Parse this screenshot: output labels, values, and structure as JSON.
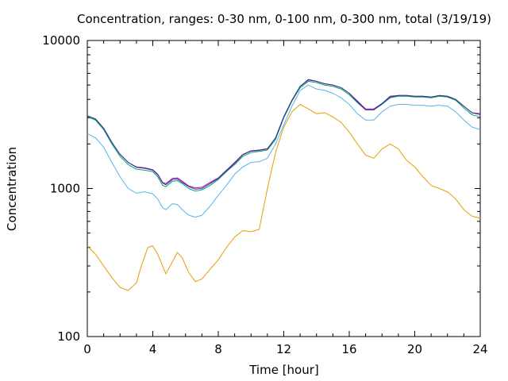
{
  "chart_data": {
    "type": "line",
    "title": "Concentration, ranges: 0-30 nm, 0-100 nm, 0-300 nm, total (3/19/19)",
    "xlabel": "Time [hour]",
    "ylabel": "Concentration",
    "xlim": [
      0,
      24
    ],
    "ylim": [
      100,
      10000
    ],
    "y_scale": "log",
    "x_ticks": [
      0,
      4,
      8,
      12,
      16,
      20,
      24
    ],
    "y_ticks": [
      100,
      1000,
      10000
    ],
    "x_tick_labels": [
      "0",
      "4",
      "8",
      "12",
      "16",
      "20",
      "24"
    ],
    "y_tick_labels": [
      "100",
      "1000",
      "10000"
    ],
    "grid": false,
    "series": [
      {
        "color": "#e69f00",
        "x": [
          0,
          0.5,
          1,
          1.5,
          2,
          2.5,
          3,
          3.3,
          3.7,
          4,
          4.3,
          4.6,
          4.8,
          5.2,
          5.5,
          5.8,
          6.2,
          6.6,
          7,
          7.5,
          8,
          8.5,
          9,
          9.5,
          10,
          10.5,
          11,
          11.5,
          12,
          12.5,
          13,
          13.5,
          14,
          14.5,
          15,
          15.5,
          16,
          16.5,
          17,
          17.5,
          18,
          18.5,
          19,
          19.5,
          20,
          20.5,
          21,
          21.5,
          22,
          22.5,
          23,
          23.5,
          24
        ],
        "y": [
          410,
          360,
          300,
          250,
          215,
          205,
          230,
          300,
          400,
          410,
          360,
          300,
          265,
          320,
          370,
          340,
          270,
          235,
          245,
          285,
          330,
          400,
          470,
          520,
          510,
          530,
          1000,
          1750,
          2600,
          3300,
          3700,
          3450,
          3200,
          3250,
          3050,
          2800,
          2400,
          2000,
          1680,
          1600,
          1850,
          2000,
          1850,
          1550,
          1400,
          1200,
          1050,
          1000,
          950,
          850,
          720,
          650,
          630
        ]
      },
      {
        "color": "#56b4e9",
        "x": [
          0,
          0.5,
          1,
          1.5,
          2,
          2.5,
          3,
          3.5,
          4,
          4.3,
          4.6,
          4.8,
          5.2,
          5.5,
          5.8,
          6.2,
          6.6,
          7,
          7.5,
          8,
          8.5,
          9,
          9.5,
          10,
          10.5,
          11,
          11.5,
          12,
          12.5,
          13,
          13.5,
          14,
          14.5,
          15,
          15.5,
          16,
          16.5,
          17,
          17.5,
          18,
          18.5,
          19,
          19.5,
          20,
          20.5,
          21,
          21.5,
          22,
          22.5,
          23,
          23.5,
          24
        ],
        "y": [
          2350,
          2200,
          1900,
          1500,
          1200,
          1000,
          930,
          950,
          920,
          850,
          740,
          720,
          790,
          780,
          720,
          660,
          640,
          660,
          760,
          900,
          1050,
          1250,
          1400,
          1500,
          1520,
          1600,
          2000,
          2700,
          3600,
          4600,
          5000,
          4700,
          4600,
          4400,
          4100,
          3700,
          3200,
          2900,
          2900,
          3300,
          3600,
          3700,
          3700,
          3650,
          3650,
          3600,
          3650,
          3600,
          3300,
          2900,
          2600,
          2500
        ]
      },
      {
        "color": "#009e73",
        "x": [
          0,
          0.5,
          1,
          1.5,
          2,
          2.5,
          3,
          3.5,
          4,
          4.3,
          4.6,
          4.8,
          5.2,
          5.5,
          5.8,
          6.2,
          6.6,
          7,
          7.5,
          8,
          8.5,
          9,
          9.5,
          10,
          10.5,
          11,
          11.5,
          12,
          12.5,
          13,
          13.5,
          14,
          14.5,
          15,
          15.5,
          16,
          16.5,
          17,
          17.5,
          18,
          18.5,
          19,
          19.5,
          20,
          20.5,
          21,
          21.5,
          22,
          22.5,
          23,
          23.5,
          24
        ],
        "y": [
          3050,
          2900,
          2500,
          2000,
          1650,
          1450,
          1350,
          1330,
          1300,
          1200,
          1050,
          1030,
          1120,
          1130,
          1080,
          1000,
          960,
          980,
          1050,
          1150,
          1300,
          1450,
          1650,
          1750,
          1780,
          1820,
          2150,
          3000,
          3900,
          4800,
          5300,
          5200,
          5000,
          4900,
          4700,
          4300,
          3800,
          3400,
          3400,
          3700,
          4100,
          4200,
          4200,
          4150,
          4150,
          4100,
          4200,
          4150,
          3950,
          3500,
          3150,
          3050
        ]
      },
      {
        "color": "#cc00cc",
        "x": [
          0,
          0.5,
          1,
          1.5,
          2,
          2.5,
          3,
          3.5,
          4,
          4.3,
          4.6,
          4.8,
          5.2,
          5.5,
          5.8,
          6.2,
          6.6,
          7,
          7.5,
          8,
          8.5,
          9,
          9.5,
          10,
          10.5,
          11,
          11.5,
          12,
          12.5,
          13,
          13.5,
          14,
          14.5,
          15,
          15.5,
          16,
          16.5,
          17,
          17.5,
          18,
          18.5,
          19,
          19.5,
          20,
          20.5,
          21,
          21.5,
          22,
          22.5,
          23,
          23.5,
          24
        ],
        "y": [
          3100,
          2950,
          2550,
          2050,
          1700,
          1500,
          1400,
          1380,
          1340,
          1250,
          1100,
          1080,
          1170,
          1180,
          1120,
          1040,
          1010,
          1020,
          1100,
          1180,
          1330,
          1500,
          1700,
          1800,
          1820,
          1860,
          2200,
          3050,
          3950,
          4900,
          5400,
          5300,
          5100,
          5000,
          4800,
          4400,
          3900,
          3450,
          3450,
          3750,
          4150,
          4250,
          4250,
          4200,
          4200,
          4150,
          4250,
          4200,
          4000,
          3600,
          3250,
          3150
        ]
      },
      {
        "color": "#1f3f7f",
        "x": [
          0,
          0.5,
          1,
          1.5,
          2,
          2.5,
          3,
          3.5,
          4,
          4.3,
          4.6,
          4.8,
          5.2,
          5.5,
          5.8,
          6.2,
          6.6,
          7,
          7.5,
          8,
          8.5,
          9,
          9.5,
          10,
          10.5,
          11,
          11.5,
          12,
          12.5,
          13,
          13.5,
          14,
          14.5,
          15,
          15.5,
          16,
          16.5,
          17,
          17.5,
          18,
          18.5,
          19,
          19.5,
          20,
          20.5,
          21,
          21.5,
          22,
          22.5,
          23,
          23.5,
          24
        ],
        "y": [
          3100,
          2950,
          2550,
          2050,
          1700,
          1500,
          1390,
          1370,
          1330,
          1240,
          1090,
          1060,
          1150,
          1160,
          1100,
          1030,
          990,
          1000,
          1080,
          1170,
          1320,
          1480,
          1690,
          1790,
          1810,
          1850,
          2200,
          3050,
          3950,
          4900,
          5450,
          5300,
          5100,
          5000,
          4800,
          4400,
          3850,
          3400,
          3400,
          3750,
          4200,
          4250,
          4250,
          4200,
          4200,
          4150,
          4250,
          4200,
          4000,
          3600,
          3250,
          3200
        ]
      }
    ]
  }
}
